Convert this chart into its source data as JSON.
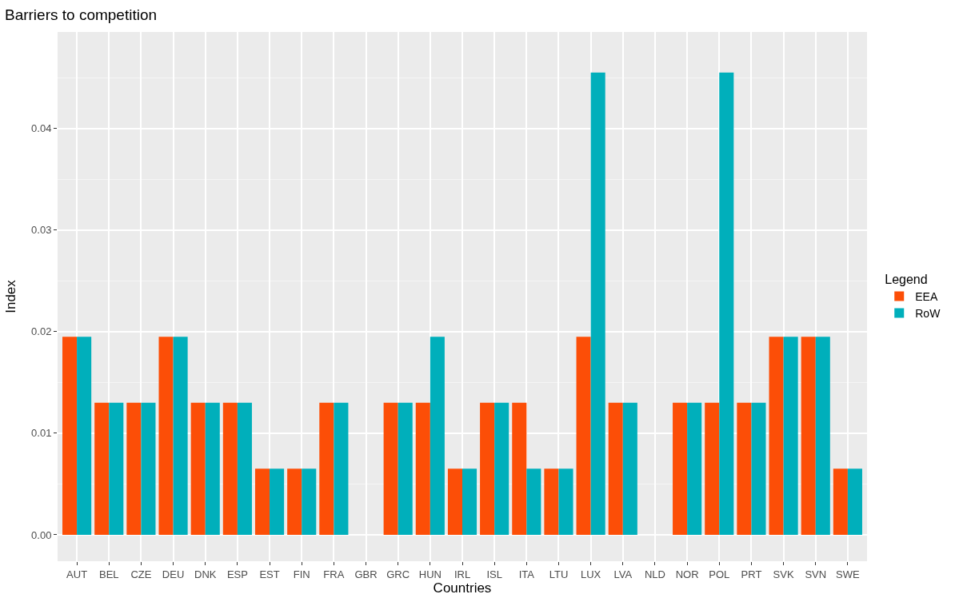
{
  "chart_data": {
    "type": "bar",
    "title": "Barriers to competition",
    "xlabel": "Countries",
    "ylabel": "Index",
    "legend_title": "Legend",
    "categories": [
      "AUT",
      "BEL",
      "CZE",
      "DEU",
      "DNK",
      "ESP",
      "EST",
      "FIN",
      "FRA",
      "GBR",
      "GRC",
      "HUN",
      "IRL",
      "ISL",
      "ITA",
      "LTU",
      "LUX",
      "LVA",
      "NLD",
      "NOR",
      "POL",
      "PRT",
      "SVK",
      "SVN",
      "SWE"
    ],
    "series": [
      {
        "name": "EEA",
        "color": "#fc4e07",
        "values": [
          0.0195,
          0.013,
          0.013,
          0.0195,
          0.013,
          0.013,
          0.0065,
          0.0065,
          0.013,
          0,
          0.013,
          0.013,
          0.0065,
          0.013,
          0.013,
          0.0065,
          0.0195,
          0.013,
          0,
          0.013,
          0.013,
          0.013,
          0.0195,
          0.0195,
          0.0065
        ]
      },
      {
        "name": "RoW",
        "color": "#00afbb",
        "values": [
          0.0195,
          0.013,
          0.013,
          0.0195,
          0.013,
          0.013,
          0.0065,
          0.0065,
          0.013,
          0,
          0.013,
          0.0195,
          0.0065,
          0.013,
          0.0065,
          0.0065,
          0.0455,
          0.013,
          0,
          0.013,
          0.0455,
          0.013,
          0.0195,
          0.0195,
          0.0065
        ]
      }
    ],
    "ylim": [
      -0.0026,
      0.0495
    ],
    "yticks": [
      {
        "value": 0,
        "label": "0.00"
      },
      {
        "value": 0.01,
        "label": "0.01"
      },
      {
        "value": 0.02,
        "label": "0.02"
      },
      {
        "value": 0.03,
        "label": "0.03"
      },
      {
        "value": 0.04,
        "label": "0.04"
      }
    ],
    "grid": true,
    "legend": "right"
  }
}
